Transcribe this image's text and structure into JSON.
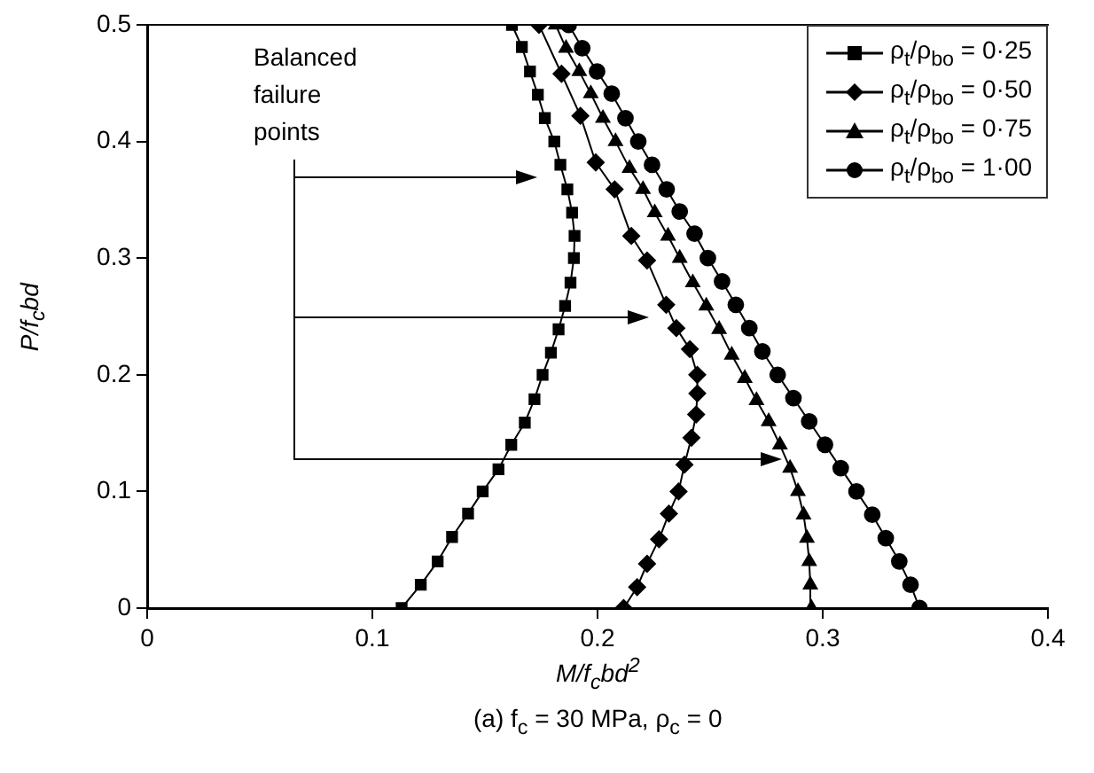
{
  "chart_data": {
    "type": "line",
    "title": "(a) f$_{c}$ = 30 MPa, ρ$_{c}$ = 0",
    "xlabel": "M/f$_{c}$bd$^{2}$",
    "ylabel": "P/f$_{c}$bd",
    "annotations": [
      "Balanced failure points"
    ],
    "xlim": [
      0,
      0.4
    ],
    "xticks": [
      0,
      0.1,
      0.2,
      0.3,
      0.4
    ],
    "ylim": [
      0,
      0.5
    ],
    "yticks": [
      0,
      0.1,
      0.2,
      0.3,
      0.4,
      0.5
    ],
    "grid": false,
    "legend": "top right",
    "line_style": "solid",
    "series": [
      {
        "name": "ρ$_{t}$/ρ$_{bo}$ = 0·25",
        "color": "#000000",
        "marker": "square",
        "x": [
          0.113,
          0.1215,
          0.129,
          0.1354,
          0.1425,
          0.149,
          0.156,
          0.1617,
          0.1677,
          0.172,
          0.1756,
          0.1793,
          0.1827,
          0.1856,
          0.188,
          0.1895,
          0.1898,
          0.1887,
          0.1866,
          0.1835,
          0.1808,
          0.1766,
          0.1735,
          0.17,
          0.1664,
          0.162
        ],
        "values": [
          0,
          0.02,
          0.04,
          0.061,
          0.081,
          0.1,
          0.119,
          0.14,
          0.159,
          0.179,
          0.2,
          0.219,
          0.239,
          0.259,
          0.279,
          0.3,
          0.319,
          0.339,
          0.359,
          0.38,
          0.4,
          0.42,
          0.44,
          0.46,
          0.481,
          0.5
        ]
      },
      {
        "name": "ρ$_{t}$/ρ$_{bo}$ = 0·50",
        "color": "#000000",
        "marker": "diamond",
        "x": [
          0.2116,
          0.2176,
          0.222,
          0.2273,
          0.2317,
          0.236,
          0.2386,
          0.2417,
          0.2438,
          0.2443,
          0.2443,
          0.241,
          0.235,
          0.2305,
          0.222,
          0.215,
          0.2076,
          0.1992,
          0.1924,
          0.184,
          0.174
        ],
        "values": [
          0,
          0.018,
          0.038,
          0.059,
          0.081,
          0.1,
          0.123,
          0.146,
          0.166,
          0.184,
          0.2,
          0.222,
          0.24,
          0.26,
          0.298,
          0.319,
          0.359,
          0.382,
          0.422,
          0.458,
          0.5
        ]
      },
      {
        "name": "ρ$_{t}$/ρ$_{bo}$ = 0·75",
        "color": "#000000",
        "marker": "triangle",
        "x": [
          0.295,
          0.2945,
          0.294,
          0.293,
          0.2915,
          0.289,
          0.2855,
          0.281,
          0.276,
          0.2706,
          0.2654,
          0.2596,
          0.254,
          0.2483,
          0.2423,
          0.2365,
          0.2313,
          0.2254,
          0.2202,
          0.2142,
          0.208,
          0.2024,
          0.197,
          0.1919,
          0.186,
          0.1814
        ],
        "values": [
          0,
          0.02,
          0.04,
          0.06,
          0.08,
          0.1,
          0.12,
          0.14,
          0.16,
          0.178,
          0.197,
          0.217,
          0.239,
          0.259,
          0.279,
          0.3,
          0.319,
          0.339,
          0.359,
          0.377,
          0.4,
          0.42,
          0.441,
          0.46,
          0.48,
          0.5
        ]
      },
      {
        "name": "ρ$_{t}$/ρ$_{bo}$ = 1·00",
        "color": "#000000",
        "marker": "circle",
        "x": [
          0.343,
          0.339,
          0.334,
          0.328,
          0.322,
          0.315,
          0.308,
          0.301,
          0.294,
          0.287,
          0.28,
          0.2732,
          0.2674,
          0.2614,
          0.2553,
          0.249,
          0.2431,
          0.2365,
          0.2307,
          0.2242,
          0.2181,
          0.2124,
          0.2063,
          0.1998,
          0.1932,
          0.1872
        ],
        "values": [
          0,
          0.02,
          0.04,
          0.06,
          0.08,
          0.1,
          0.12,
          0.14,
          0.16,
          0.18,
          0.2,
          0.22,
          0.24,
          0.26,
          0.28,
          0.3,
          0.321,
          0.34,
          0.359,
          0.38,
          0.4,
          0.42,
          0.441,
          0.46,
          0.48,
          0.5
        ]
      }
    ]
  }
}
